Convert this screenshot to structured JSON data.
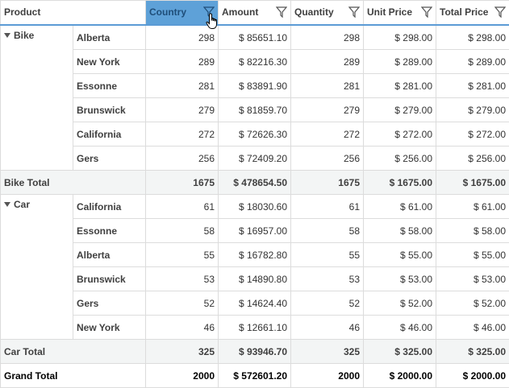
{
  "columns": [
    {
      "label": "Product"
    },
    {
      "label": "Country",
      "active": true
    },
    {
      "label": "Amount"
    },
    {
      "label": "Quantity"
    },
    {
      "label": "Unit Price"
    },
    {
      "label": "Total Price"
    }
  ],
  "groups": [
    {
      "product": "Bike",
      "rows": [
        {
          "country": "Alberta",
          "count": "298",
          "amount": "$ 85651.10",
          "quantity": "298",
          "unit_price": "$ 298.00",
          "total_price": "$ 298.00"
        },
        {
          "country": "New York",
          "count": "289",
          "amount": "$ 82216.30",
          "quantity": "289",
          "unit_price": "$ 289.00",
          "total_price": "$ 289.00"
        },
        {
          "country": "Essonne",
          "count": "281",
          "amount": "$ 83891.90",
          "quantity": "281",
          "unit_price": "$ 281.00",
          "total_price": "$ 281.00"
        },
        {
          "country": "Brunswick",
          "count": "279",
          "amount": "$ 81859.70",
          "quantity": "279",
          "unit_price": "$ 279.00",
          "total_price": "$ 279.00"
        },
        {
          "country": "California",
          "count": "272",
          "amount": "$ 72626.30",
          "quantity": "272",
          "unit_price": "$ 272.00",
          "total_price": "$ 272.00"
        },
        {
          "country": "Gers",
          "count": "256",
          "amount": "$ 72409.20",
          "quantity": "256",
          "unit_price": "$ 256.00",
          "total_price": "$ 256.00"
        }
      ],
      "total": {
        "label": "Bike Total",
        "count": "1675",
        "amount": "$ 478654.50",
        "quantity": "1675",
        "unit_price": "$ 1675.00",
        "total_price": "$ 1675.00"
      }
    },
    {
      "product": "Car",
      "rows": [
        {
          "country": "California",
          "count": "61",
          "amount": "$ 18030.60",
          "quantity": "61",
          "unit_price": "$ 61.00",
          "total_price": "$ 61.00"
        },
        {
          "country": "Essonne",
          "count": "58",
          "amount": "$ 16957.00",
          "quantity": "58",
          "unit_price": "$ 58.00",
          "total_price": "$ 58.00"
        },
        {
          "country": "Alberta",
          "count": "55",
          "amount": "$ 16782.80",
          "quantity": "55",
          "unit_price": "$ 55.00",
          "total_price": "$ 55.00"
        },
        {
          "country": "Brunswick",
          "count": "53",
          "amount": "$ 14890.80",
          "quantity": "53",
          "unit_price": "$ 53.00",
          "total_price": "$ 53.00"
        },
        {
          "country": "Gers",
          "count": "52",
          "amount": "$ 14624.40",
          "quantity": "52",
          "unit_price": "$ 52.00",
          "total_price": "$ 52.00"
        },
        {
          "country": "New York",
          "count": "46",
          "amount": "$ 12661.10",
          "quantity": "46",
          "unit_price": "$ 46.00",
          "total_price": "$ 46.00"
        }
      ],
      "total": {
        "label": "Car Total",
        "count": "325",
        "amount": "$ 93946.70",
        "quantity": "325",
        "unit_price": "$ 325.00",
        "total_price": "$ 325.00"
      }
    }
  ],
  "grand_total": {
    "label": "Grand Total",
    "count": "2000",
    "amount": "$ 572601.20",
    "quantity": "2000",
    "unit_price": "$ 2000.00",
    "total_price": "$ 2000.00"
  },
  "colors": {
    "header_active": "#5ea1d8",
    "header_border": "#5b9bd5",
    "total_row": "#f3f5f5",
    "grid_line": "#dcdcdc"
  }
}
